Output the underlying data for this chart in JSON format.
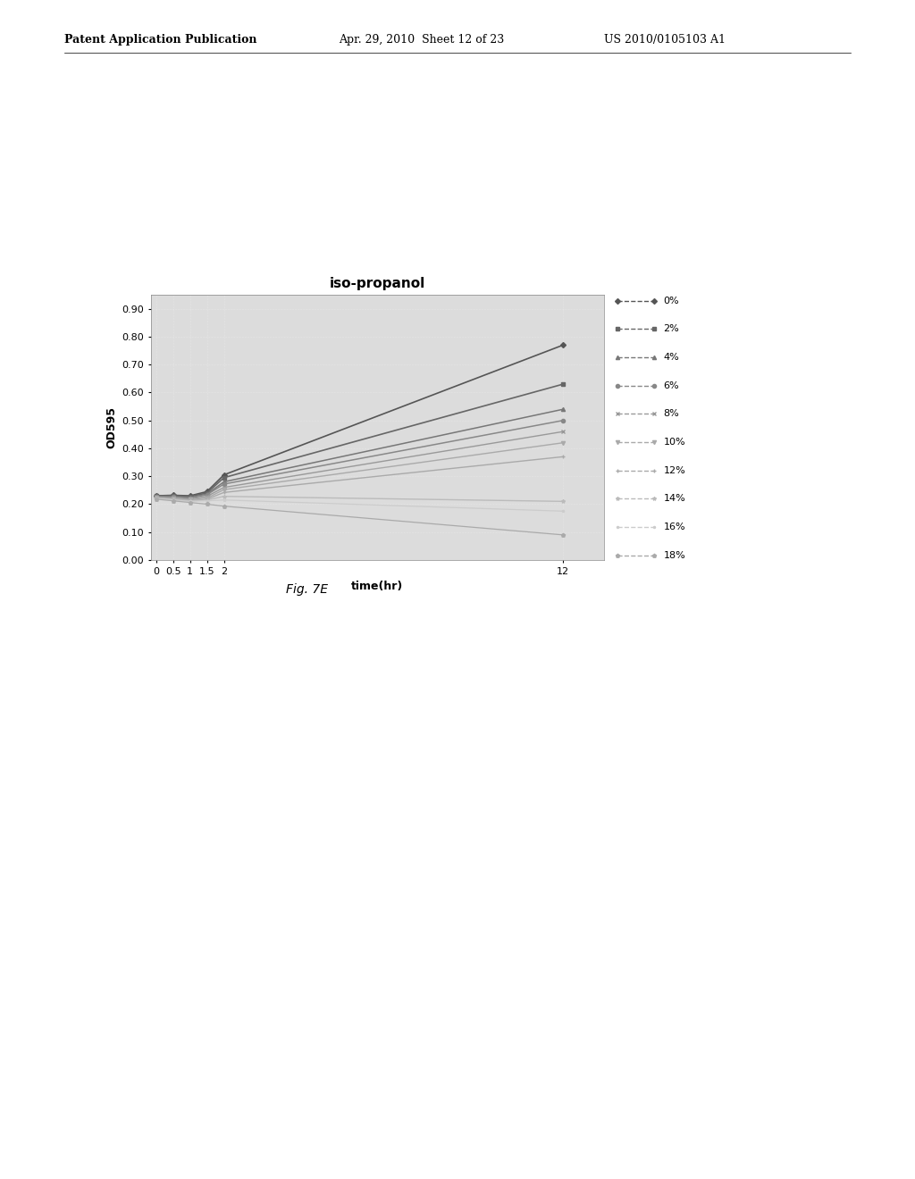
{
  "title": "iso-propanol",
  "xlabel": "time(hr)",
  "ylabel": "OD595",
  "fig_caption": "Fig. 7E",
  "xlim": [
    -0.15,
    13.2
  ],
  "ylim": [
    0.0,
    0.95
  ],
  "xticks": [
    0,
    0.5,
    1,
    1.5,
    2,
    12
  ],
  "yticks": [
    0.0,
    0.1,
    0.2,
    0.3,
    0.4,
    0.5,
    0.6,
    0.7,
    0.8,
    0.9
  ],
  "background_page": "#ffffff",
  "plot_bg": "#dcdcdc",
  "series": [
    {
      "label": "0%",
      "color": "#555555",
      "linewidth": 1.2,
      "marker": "D",
      "markersize": 3,
      "data": [
        [
          0,
          0.23
        ],
        [
          0.5,
          0.232
        ],
        [
          1,
          0.23
        ],
        [
          1.5,
          0.245
        ],
        [
          2,
          0.305
        ],
        [
          12,
          0.77
        ]
      ]
    },
    {
      "label": "2%",
      "color": "#666666",
      "linewidth": 1.2,
      "marker": "s",
      "markersize": 3,
      "data": [
        [
          0,
          0.23
        ],
        [
          0.5,
          0.23
        ],
        [
          1,
          0.228
        ],
        [
          1.5,
          0.24
        ],
        [
          2,
          0.295
        ],
        [
          12,
          0.63
        ]
      ]
    },
    {
      "label": "4%",
      "color": "#777777",
      "linewidth": 1.1,
      "marker": "^",
      "markersize": 3,
      "data": [
        [
          0,
          0.228
        ],
        [
          0.5,
          0.228
        ],
        [
          1,
          0.224
        ],
        [
          1.5,
          0.236
        ],
        [
          2,
          0.28
        ],
        [
          12,
          0.54
        ]
      ]
    },
    {
      "label": "6%",
      "color": "#888888",
      "linewidth": 1.1,
      "marker": "o",
      "markersize": 3,
      "data": [
        [
          0,
          0.226
        ],
        [
          0.5,
          0.226
        ],
        [
          1,
          0.222
        ],
        [
          1.5,
          0.234
        ],
        [
          2,
          0.272
        ],
        [
          12,
          0.5
        ]
      ]
    },
    {
      "label": "8%",
      "color": "#999999",
      "linewidth": 1.0,
      "marker": "x",
      "markersize": 3,
      "data": [
        [
          0,
          0.225
        ],
        [
          0.5,
          0.222
        ],
        [
          1,
          0.218
        ],
        [
          1.5,
          0.228
        ],
        [
          2,
          0.26
        ],
        [
          12,
          0.46
        ]
      ]
    },
    {
      "label": "10%",
      "color": "#aaaaaa",
      "linewidth": 1.0,
      "marker": "v",
      "markersize": 3,
      "data": [
        [
          0,
          0.224
        ],
        [
          0.5,
          0.221
        ],
        [
          1,
          0.216
        ],
        [
          1.5,
          0.222
        ],
        [
          2,
          0.252
        ],
        [
          12,
          0.42
        ]
      ]
    },
    {
      "label": "12%",
      "color": "#aaaaaa",
      "linewidth": 1.0,
      "marker": "+",
      "markersize": 3,
      "data": [
        [
          0,
          0.222
        ],
        [
          0.5,
          0.218
        ],
        [
          1,
          0.213
        ],
        [
          1.5,
          0.218
        ],
        [
          2,
          0.242
        ],
        [
          12,
          0.37
        ]
      ]
    },
    {
      "label": "14%",
      "color": "#bbbbbb",
      "linewidth": 1.0,
      "marker": "*",
      "markersize": 3,
      "data": [
        [
          0,
          0.222
        ],
        [
          0.5,
          0.217
        ],
        [
          1,
          0.212
        ],
        [
          1.5,
          0.215
        ],
        [
          2,
          0.228
        ],
        [
          12,
          0.21
        ]
      ]
    },
    {
      "label": "16%",
      "color": "#cccccc",
      "linewidth": 0.9,
      "marker": ".",
      "markersize": 3,
      "data": [
        [
          0,
          0.22
        ],
        [
          0.5,
          0.215
        ],
        [
          1,
          0.21
        ],
        [
          1.5,
          0.212
        ],
        [
          2,
          0.215
        ],
        [
          12,
          0.175
        ]
      ]
    },
    {
      "label": "18%",
      "color": "#aaaaaa",
      "linewidth": 0.9,
      "marker": "p",
      "markersize": 3,
      "data": [
        [
          0,
          0.218
        ],
        [
          0.5,
          0.212
        ],
        [
          1,
          0.206
        ],
        [
          1.5,
          0.2
        ],
        [
          2,
          0.193
        ],
        [
          12,
          0.09
        ]
      ]
    }
  ],
  "header_left": "Patent Application Publication",
  "header_mid": "Apr. 29, 2010  Sheet 12 of 23",
  "header_right": "US 2010/0105103 A1"
}
